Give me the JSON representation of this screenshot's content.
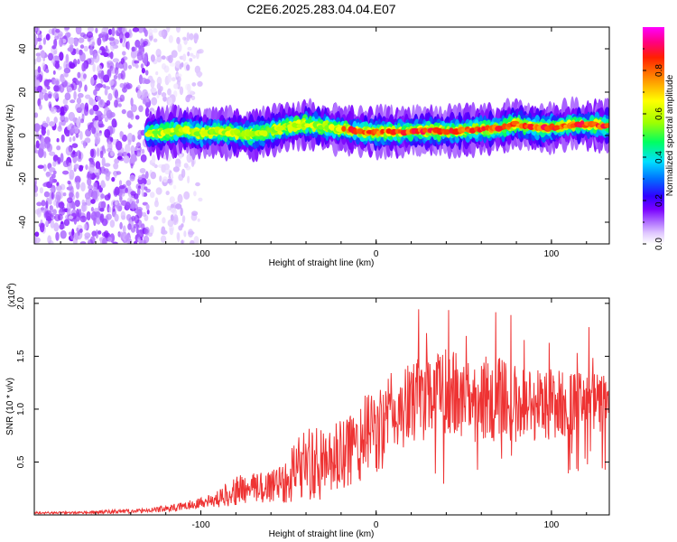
{
  "title": "C2E6.2025.283.04.04.E07",
  "chart_data": [
    {
      "type": "heatmap",
      "title": "C2E6.2025.283.04.04.E07",
      "xlabel": "Height of straight line (km)",
      "ylabel": "Frequency (Hz)",
      "xlim": [
        -195,
        133
      ],
      "ylim": [
        -50,
        50
      ],
      "xticks": [
        -100,
        0,
        100
      ],
      "yticks": [
        -40,
        -20,
        0,
        20,
        40
      ],
      "xtick_labels": [
        "-100",
        "0",
        "100"
      ],
      "ytick_labels": [
        "-40",
        "-20",
        "0",
        "20",
        "40"
      ],
      "colorbar": {
        "label": "Normalized spectral amplitude",
        "range": [
          0,
          1
        ],
        "ticks": [
          0.0,
          0.2,
          0.4,
          0.6,
          0.8
        ],
        "tick_labels": [
          "0.0",
          "0.2",
          "0.4",
          "0.6",
          "0.8"
        ],
        "colors": [
          "#ffffff",
          "#e0c8ff",
          "#b070ff",
          "#7a00ff",
          "#3000ff",
          "#0070ff",
          "#00e0ff",
          "#00ff60",
          "#a0ff00",
          "#ffff00",
          "#ff9000",
          "#ff2000",
          "#ff0080",
          "#ff00ff"
        ]
      },
      "ridge": {
        "x": [
          -130,
          -120,
          -110,
          -100,
          -90,
          -80,
          -70,
          -60,
          -50,
          -40,
          -30,
          -20,
          -10,
          0,
          10,
          20,
          30,
          40,
          50,
          60,
          70,
          80,
          90,
          100,
          110,
          120,
          130
        ],
        "frequency": [
          1,
          1.5,
          2.5,
          1,
          2,
          1,
          0.5,
          2,
          4.5,
          5,
          4,
          3,
          2,
          1.5,
          1.5,
          2,
          2,
          2,
          2.5,
          3,
          3,
          5.5,
          3.5,
          3.5,
          5,
          5,
          4.5
        ]
      }
    },
    {
      "type": "line",
      "xlabel": "Height of straight line (km)",
      "ylabel": "SNR (10 * v/v)",
      "y_multiplier_label": "(x10",
      "y_multiplier_exponent": "4",
      "xlim": [
        -195,
        133
      ],
      "ylim": [
        0,
        2.05
      ],
      "xticks": [
        -100,
        0,
        100
      ],
      "yticks": [
        0.5,
        1.0,
        1.5,
        2.0
      ],
      "xtick_labels": [
        "-100",
        "0",
        "100"
      ],
      "ytick_labels": [
        "0.5",
        "1.0",
        "1.5",
        "2.0"
      ],
      "color": "#ee3333",
      "series": [
        {
          "name": "SNR",
          "x": [
            -195,
            -170,
            -150,
            -130,
            -120,
            -110,
            -100,
            -90,
            -85,
            -80,
            -70,
            -60,
            -50,
            -45,
            -40,
            -30,
            -20,
            -15,
            -10,
            0,
            5,
            10,
            15,
            20,
            25,
            30,
            35,
            40,
            50,
            60,
            70,
            80,
            90,
            100,
            110,
            120,
            130
          ],
          "mean": [
            0.02,
            0.02,
            0.03,
            0.04,
            0.06,
            0.08,
            0.12,
            0.15,
            0.2,
            0.23,
            0.25,
            0.28,
            0.35,
            0.45,
            0.5,
            0.45,
            0.55,
            0.6,
            0.7,
            0.8,
            0.85,
            0.95,
            1.0,
            1.05,
            1.1,
            1.15,
            1.15,
            1.15,
            1.1,
            1.1,
            1.1,
            1.05,
            1.05,
            1.05,
            1.05,
            1.05,
            1.05
          ],
          "spread": [
            0.01,
            0.01,
            0.02,
            0.02,
            0.03,
            0.04,
            0.05,
            0.08,
            0.12,
            0.14,
            0.15,
            0.18,
            0.25,
            0.3,
            0.35,
            0.35,
            0.35,
            0.38,
            0.4,
            0.42,
            0.42,
            0.42,
            0.4,
            0.4,
            0.4,
            0.45,
            0.45,
            0.42,
            0.42,
            0.42,
            0.4,
            0.38,
            0.36,
            0.35,
            0.32,
            0.3,
            0.3
          ]
        }
      ]
    }
  ]
}
